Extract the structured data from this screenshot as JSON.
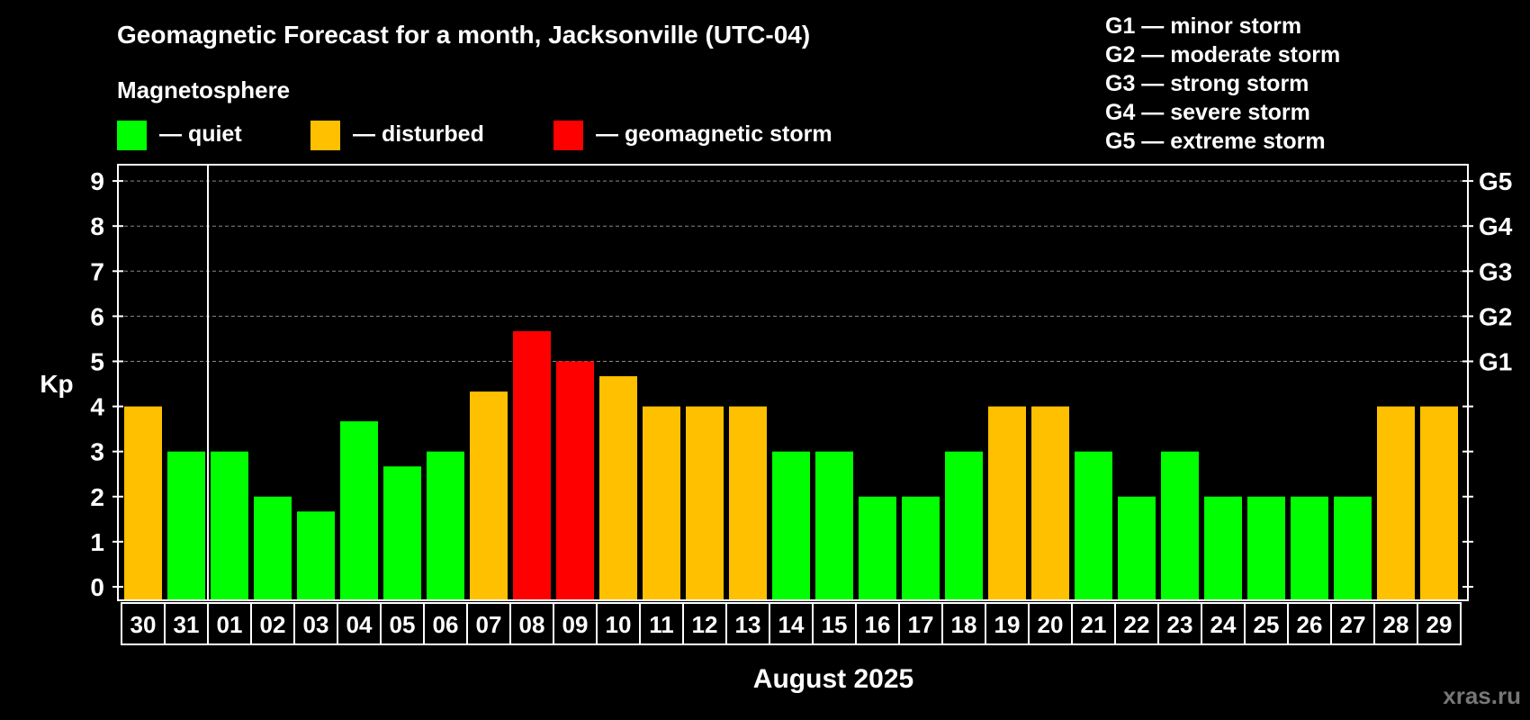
{
  "chart_data": {
    "type": "bar",
    "title": "Geomagnetic Forecast for a month, Jacksonville (UTC-04)",
    "subtitle": "Magnetosphere",
    "xlabel": "August 2025",
    "ylabel": "Kp",
    "ylim": [
      0,
      9
    ],
    "y_ticks": [
      "0",
      "1",
      "2",
      "3",
      "4",
      "5",
      "6",
      "7",
      "8",
      "9"
    ],
    "right_ticks": [
      {
        "value": 5,
        "label": "G1"
      },
      {
        "value": 6,
        "label": "G2"
      },
      {
        "value": 7,
        "label": "G3"
      },
      {
        "value": 8,
        "label": "G4"
      },
      {
        "value": 9,
        "label": "G5"
      }
    ],
    "grid": true,
    "categories": [
      "30",
      "31",
      "01",
      "02",
      "03",
      "04",
      "05",
      "06",
      "07",
      "08",
      "09",
      "10",
      "11",
      "12",
      "13",
      "14",
      "15",
      "16",
      "17",
      "18",
      "19",
      "20",
      "21",
      "22",
      "23",
      "24",
      "25",
      "26",
      "27",
      "28",
      "29"
    ],
    "values": [
      4,
      3,
      3,
      2,
      1.67,
      3.67,
      2.67,
      3,
      4.33,
      5.67,
      5,
      4.67,
      4,
      4,
      4,
      3,
      3,
      2,
      2,
      3,
      4,
      4,
      3,
      2,
      3,
      2,
      2,
      2,
      2,
      4,
      4
    ],
    "status": [
      "disturbed",
      "quiet",
      "quiet",
      "quiet",
      "quiet",
      "quiet",
      "quiet",
      "quiet",
      "disturbed",
      "storm",
      "storm",
      "disturbed",
      "disturbed",
      "disturbed",
      "disturbed",
      "quiet",
      "quiet",
      "quiet",
      "quiet",
      "quiet",
      "disturbed",
      "disturbed",
      "quiet",
      "quiet",
      "quiet",
      "quiet",
      "quiet",
      "quiet",
      "quiet",
      "disturbed",
      "disturbed"
    ],
    "month_divider_after": "31",
    "legend": [
      {
        "key": "quiet",
        "label": "— quiet",
        "color": "#00ff00"
      },
      {
        "key": "disturbed",
        "label": "— disturbed",
        "color": "#ffc000"
      },
      {
        "key": "storm",
        "label": "— geomagnetic storm",
        "color": "#ff0000"
      }
    ],
    "storm_scale": [
      "G1 — minor storm",
      "G2 — moderate storm",
      "G3 — strong storm",
      "G4 — severe storm",
      "G5 — extreme storm"
    ]
  },
  "watermark": "xras.ru",
  "colors": {
    "background": "#000000",
    "foreground": "#ffffff",
    "grid": "#888888",
    "watermark": "#777777"
  }
}
